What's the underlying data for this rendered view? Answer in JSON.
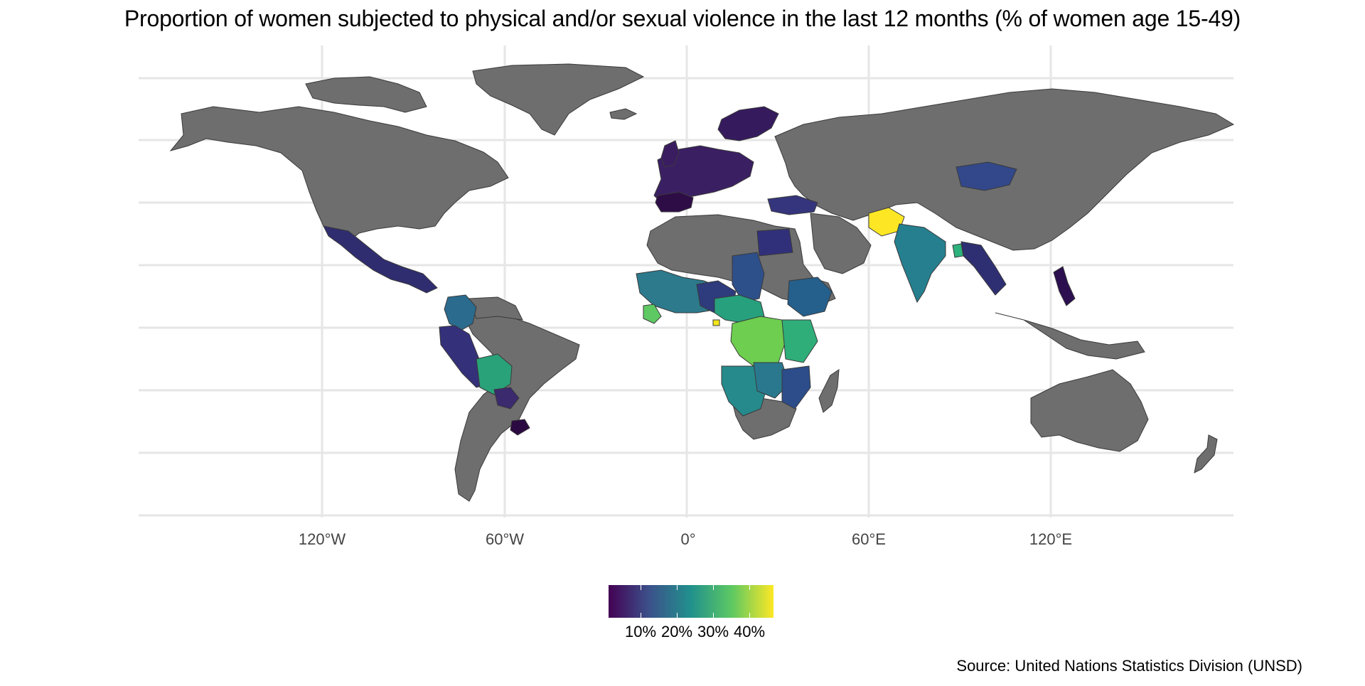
{
  "title": "Proportion of women subjected to physical and/or sexual violence in the last 12 months (% of women age 15-49)",
  "caption": "Source: United Nations Statistics Division (UNSD)",
  "x_axis_labels": [
    "120°W",
    "60°W",
    "0°",
    "60°E",
    "120°E"
  ],
  "legend": {
    "tick_labels": [
      "10%",
      "20%",
      "30%",
      "40%"
    ],
    "palette": [
      "#440154",
      "#3b528b",
      "#21918c",
      "#5ec962",
      "#fde725"
    ]
  },
  "colors": {
    "no_data": "#6e6e6e",
    "border": "#3a3a3a",
    "gridline": "#e6e6e6"
  },
  "map_data": {
    "type": "choropleth",
    "projection": "equirectangular",
    "regions": [
      {
        "name": "Afghanistan",
        "value": 46
      },
      {
        "name": "Democratic Republic of the Congo",
        "value": 36
      },
      {
        "name": "Sierra Leone",
        "value": 35
      },
      {
        "name": "Equatorial Guinea",
        "value": 40
      },
      {
        "name": "Cameroon",
        "value": 33
      },
      {
        "name": "Bolivia",
        "value": 27
      },
      {
        "name": "Uganda",
        "value": 30
      },
      {
        "name": "Tanzania",
        "value": 30
      },
      {
        "name": "Zambia",
        "value": 28
      },
      {
        "name": "India",
        "value": 22
      },
      {
        "name": "Bangladesh",
        "value": 28
      },
      {
        "name": "Ethiopia",
        "value": 20
      },
      {
        "name": "Mali",
        "value": 20
      },
      {
        "name": "Sudan",
        "value": 17
      },
      {
        "name": "Colombia",
        "value": 18
      },
      {
        "name": "Namibia",
        "value": 18
      },
      {
        "name": "Zimbabwe",
        "value": 20
      },
      {
        "name": "Mozambique",
        "value": 16
      },
      {
        "name": "Peru",
        "value": 12
      },
      {
        "name": "Ecuador",
        "value": 14
      },
      {
        "name": "Mexico",
        "value": 11
      },
      {
        "name": "Guatemala",
        "value": 10
      },
      {
        "name": "Egypt",
        "value": 14
      },
      {
        "name": "Mongolia",
        "value": 14
      },
      {
        "name": "Nigeria",
        "value": 12
      },
      {
        "name": "Turkey",
        "value": 11
      },
      {
        "name": "Myanmar",
        "value": 12
      },
      {
        "name": "Philippines",
        "value": 6
      },
      {
        "name": "Paraguay",
        "value": 7
      },
      {
        "name": "Uruguay",
        "value": 4
      },
      {
        "name": "Spain",
        "value": 3
      },
      {
        "name": "Portugal",
        "value": 4
      },
      {
        "name": "United Kingdom",
        "value": 5
      },
      {
        "name": "France",
        "value": 5
      },
      {
        "name": "Germany",
        "value": 4
      },
      {
        "name": "Poland",
        "value": 2
      },
      {
        "name": "Sweden",
        "value": 5
      },
      {
        "name": "Norway",
        "value": 5
      },
      {
        "name": "Finland",
        "value": 7
      }
    ]
  }
}
